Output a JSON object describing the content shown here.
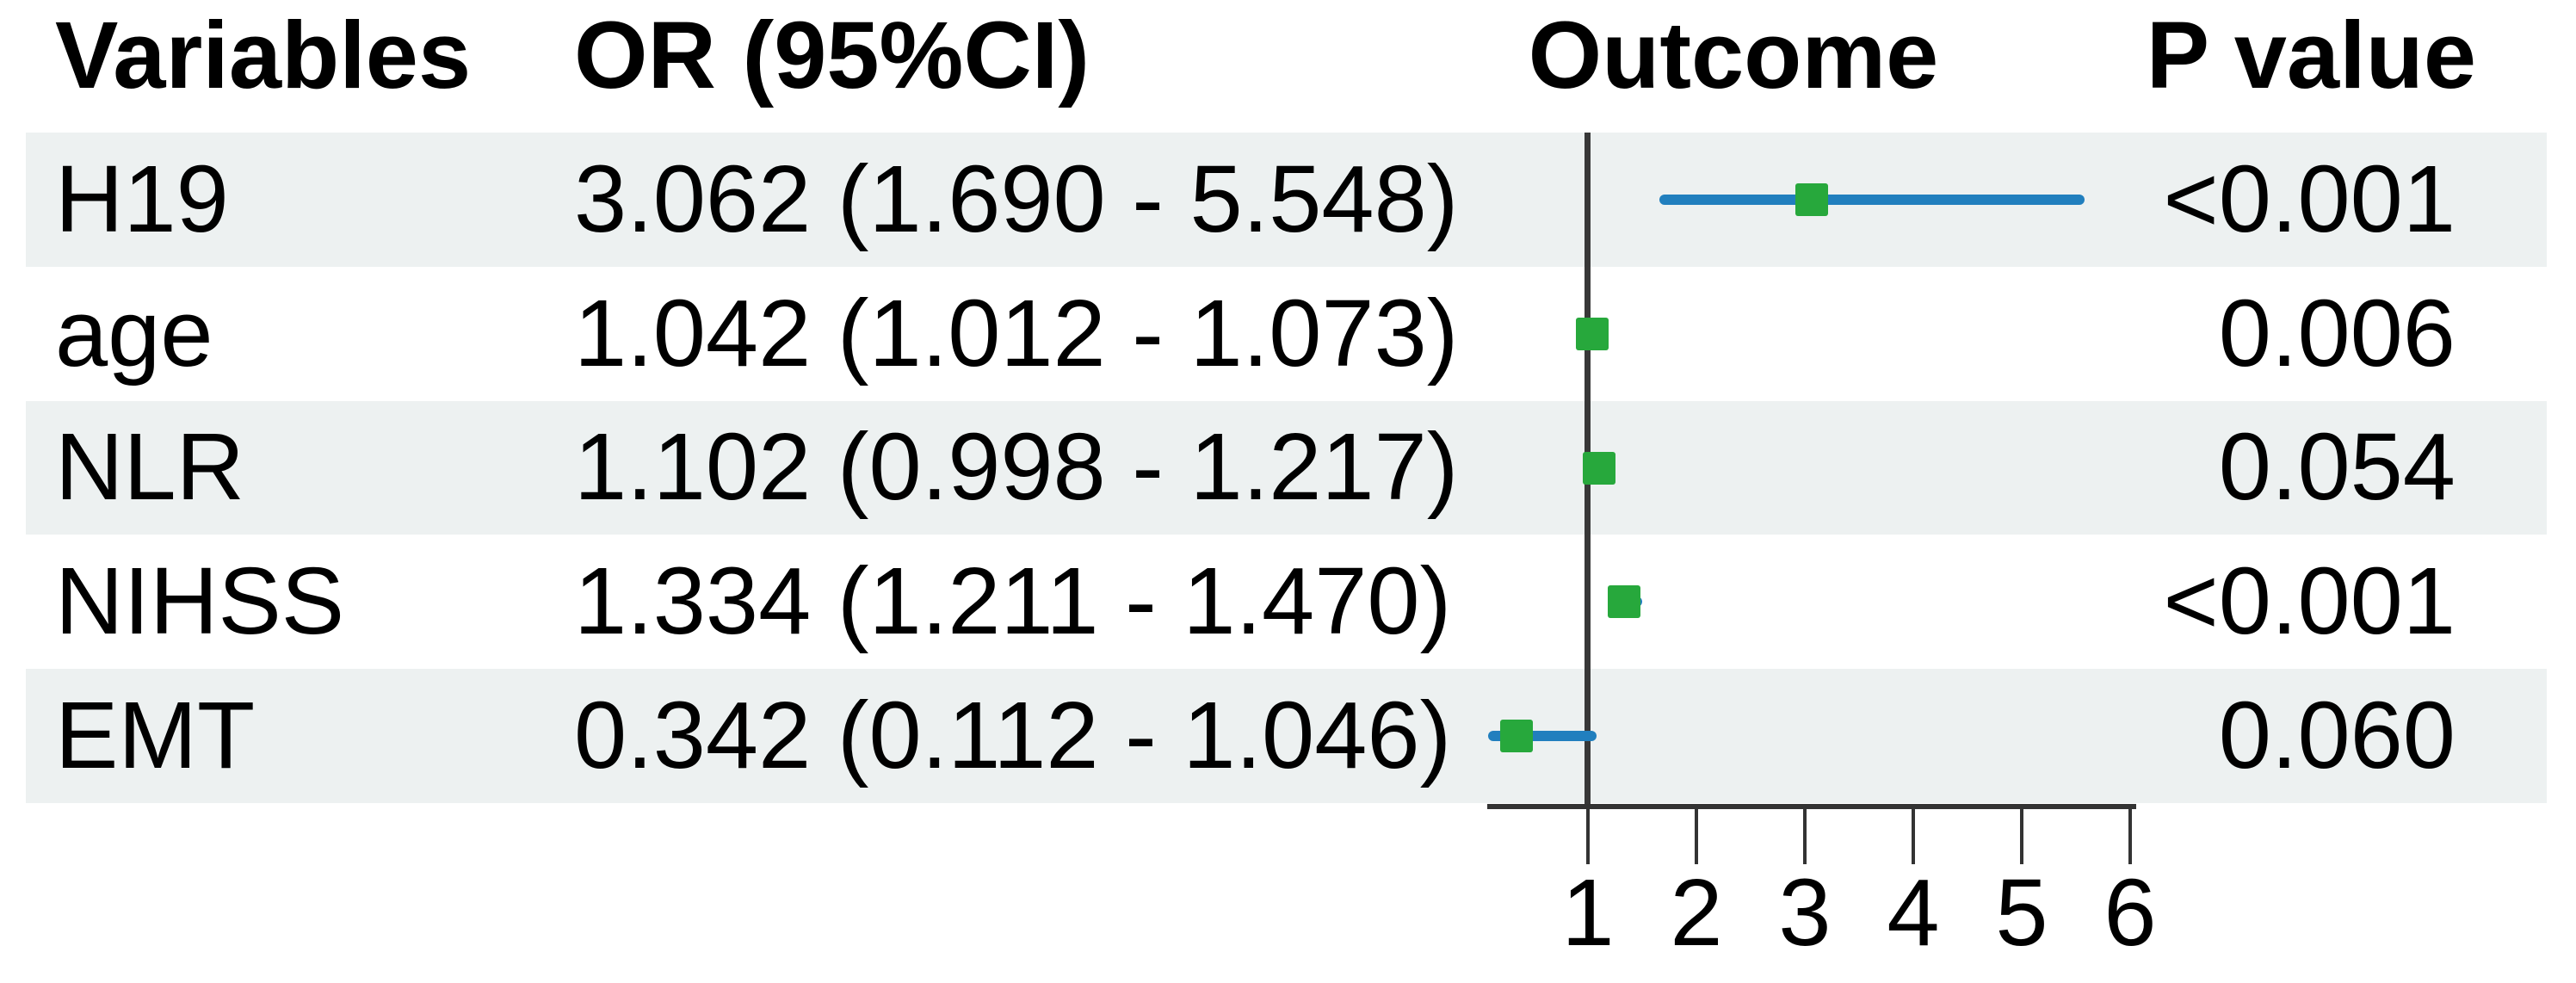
{
  "header": {
    "variables": "Variables",
    "or_ci": "OR (95%CI)",
    "outcome": "Outcome",
    "p_value": "P value"
  },
  "colors": {
    "band_shade": "#edf1f1",
    "ci_line_blue": "#217fbe",
    "marker_green": "#27a83c",
    "axis_black": "#333333",
    "text_black": "#000000"
  },
  "chart_data": {
    "type": "scatter",
    "subtype": "forest-plot",
    "title": "",
    "columns": [
      "Variables",
      "OR (95%CI)",
      "Outcome",
      "P value"
    ],
    "rows": [
      {
        "variable": "H19",
        "or": 3.062,
        "ci_low": 1.69,
        "ci_high": 5.548,
        "or_text": "3.062 (1.690 - 5.548)",
        "p_value": "<0.001",
        "shaded": true
      },
      {
        "variable": "age",
        "or": 1.042,
        "ci_low": 1.012,
        "ci_high": 1.073,
        "or_text": "1.042 (1.012 - 1.073)",
        "p_value": "0.006",
        "shaded": false
      },
      {
        "variable": "NLR",
        "or": 1.102,
        "ci_low": 0.998,
        "ci_high": 1.217,
        "or_text": "1.102 (0.998 - 1.217)",
        "p_value": "0.054",
        "shaded": true
      },
      {
        "variable": "NIHSS",
        "or": 1.334,
        "ci_low": 1.211,
        "ci_high": 1.47,
        "or_text": "1.334 (1.211 - 1.470)",
        "p_value": "<0.001",
        "shaded": false
      },
      {
        "variable": "EMT",
        "or": 0.342,
        "ci_low": 0.112,
        "ci_high": 1.046,
        "or_text": "0.342 (0.112 - 1.046)",
        "p_value": "0.060",
        "shaded": true
      }
    ],
    "x_axis": {
      "ticks": [
        "1",
        "2",
        "3",
        "4",
        "5",
        "6"
      ],
      "tick_values": [
        1,
        2,
        3,
        4,
        5,
        6
      ],
      "reference_line_value": 1,
      "range_approx": [
        0.07,
        6.05
      ],
      "scale": "linear"
    },
    "legend_position": "none",
    "grid": false
  }
}
